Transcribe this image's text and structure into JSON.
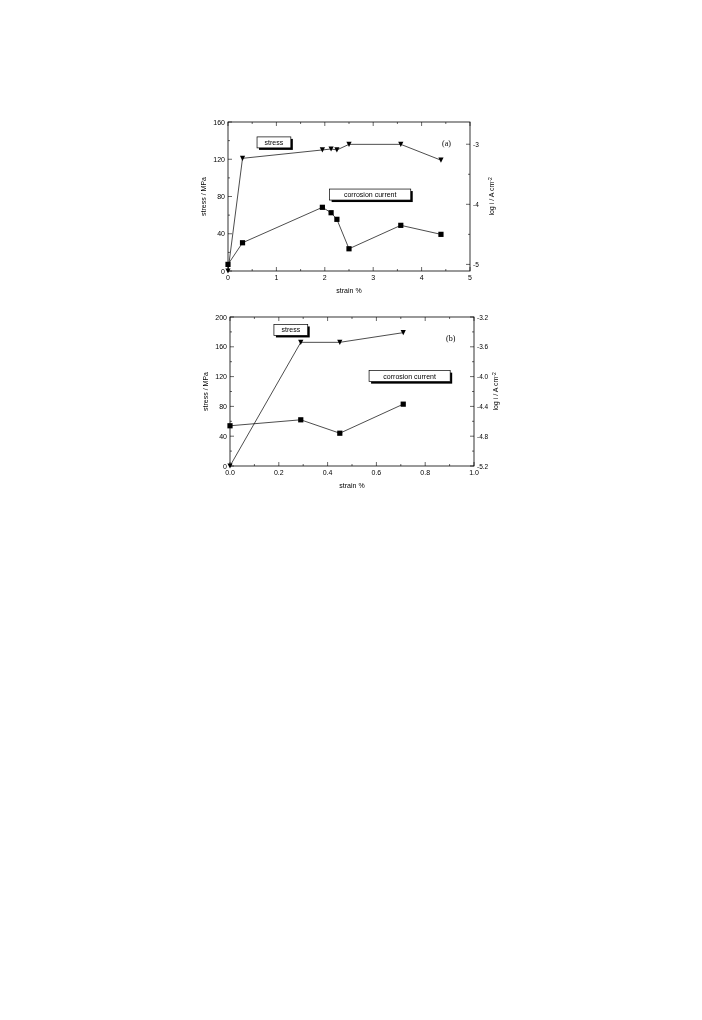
{
  "chart_data": [
    {
      "type": "line",
      "xlabel": "strain %",
      "ylabel": "stress / MPa",
      "y2label": "log i / A cm$^{-2}$",
      "annotations": [
        "(a)"
      ],
      "grid": false,
      "xlim": [
        0,
        5
      ],
      "xticks": [
        0,
        {
          "value": 0.5,
          "label": null
        },
        1,
        {
          "value": 1.5,
          "label": null
        },
        2,
        {
          "value": 2.5,
          "label": null
        },
        3,
        {
          "value": 3.5,
          "label": null
        },
        4,
        {
          "value": 4.5,
          "label": null
        },
        5
      ],
      "ylim": [
        0,
        160
      ],
      "yticks": [
        0,
        {
          "value": 20,
          "label": null
        },
        40,
        {
          "value": 60,
          "label": null
        },
        80,
        {
          "value": 100,
          "label": null
        },
        120,
        {
          "value": 140,
          "label": null
        },
        160
      ],
      "y2lim": [
        -5.11,
        -2.63
      ],
      "y2ticks": [
        -5,
        {
          "value": -4.5,
          "label": null
        },
        -4,
        {
          "value": -3.5,
          "label": null
        },
        -3
      ],
      "series": [
        {
          "name": "stress",
          "color": "#000000",
          "marker": "triangle",
          "x": [
            0,
            0.3,
            1.95,
            2.13,
            2.25,
            2.5,
            3.57,
            4.4
          ],
          "values": [
            0,
            121,
            130,
            131,
            130,
            136,
            136,
            119
          ]
        },
        {
          "name": "corrosion current",
          "color": "#000000",
          "marker": "square",
          "axis": "y2",
          "x": [
            0,
            0.3,
            1.95,
            2.13,
            2.25,
            2.5,
            3.57,
            4.4
          ],
          "values": [
            -5.0,
            -4.64,
            -4.05,
            -4.14,
            -4.25,
            -4.74,
            -4.35,
            -4.5
          ]
        }
      ]
    },
    {
      "type": "line",
      "xlabel": "strain %",
      "ylabel": "stress / MPa",
      "y2label": "log i / A cm$^{-2}$",
      "annotations": [
        "(b)"
      ],
      "grid": false,
      "xlim": [
        0,
        1
      ],
      "xticks": [
        {
          "value": 0,
          "label": "0.0"
        },
        {
          "value": 0.1,
          "label": null
        },
        {
          "value": 0.2,
          "label": "0.2"
        },
        {
          "value": 0.3,
          "label": null
        },
        {
          "value": 0.4,
          "label": "0.4"
        },
        {
          "value": 0.5,
          "label": null
        },
        {
          "value": 0.6,
          "label": "0.6"
        },
        {
          "value": 0.7,
          "label": null
        },
        {
          "value": 0.8,
          "label": "0.8"
        },
        {
          "value": 0.9,
          "label": null
        },
        {
          "value": 1,
          "label": "1.0"
        }
      ],
      "ylim": [
        0,
        200
      ],
      "yticks": [
        0,
        {
          "value": 20,
          "label": null
        },
        40,
        {
          "value": 60,
          "label": null
        },
        80,
        {
          "value": 100,
          "label": null
        },
        120,
        {
          "value": 140,
          "label": null
        },
        160,
        {
          "value": 180,
          "label": null
        },
        200
      ],
      "y2lim": [
        -5.2,
        -3.2
      ],
      "y2ticks": [
        -5.2,
        {
          "value": -5.0,
          "label": null
        },
        -4.8,
        {
          "value": -4.6,
          "label": null
        },
        -4.4,
        {
          "value": -4.2,
          "label": null
        },
        {
          "value": -4.0,
          "label": "-4.0"
        },
        {
          "value": -3.8,
          "label": null
        },
        -3.6,
        {
          "value": -3.4,
          "label": null
        },
        -3.2
      ],
      "series": [
        {
          "name": "stress",
          "color": "#000000",
          "marker": "triangle",
          "x": [
            0,
            0.29,
            0.45,
            0.71
          ],
          "values": [
            0,
            166,
            166,
            179
          ]
        },
        {
          "name": "corrosion current",
          "color": "#000000",
          "marker": "square",
          "axis": "y2",
          "x": [
            0,
            0.29,
            0.45,
            0.71
          ],
          "values": [
            -4.66,
            -4.58,
            -4.76,
            -4.37
          ]
        }
      ]
    }
  ]
}
